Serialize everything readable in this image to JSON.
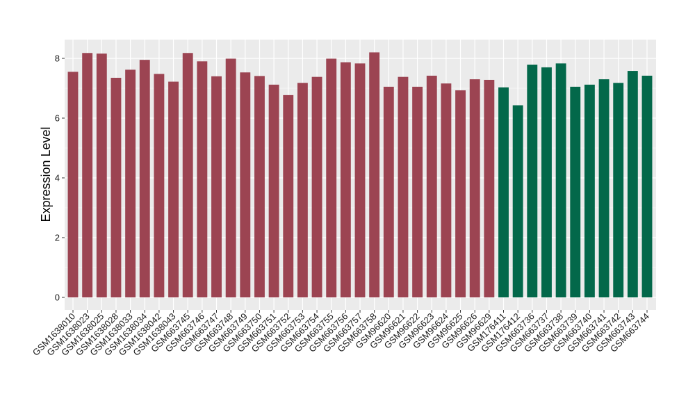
{
  "chart_data": {
    "type": "bar",
    "title": "",
    "xlabel": "",
    "ylabel": "Expression Level",
    "ylim": [
      0,
      8.6
    ],
    "yticks": [
      0,
      2,
      4,
      6,
      8
    ],
    "grid": true,
    "legend": "none",
    "colors": {
      "group_a": "#9c4452",
      "group_b": "#03684a",
      "panel_bg": "#ebebeb",
      "grid": "#ffffff"
    },
    "categories": [
      "GSM1638010",
      "GSM1638023",
      "GSM1638025",
      "GSM1638028",
      "GSM1638033",
      "GSM1638034",
      "GSM1638042",
      "GSM1638043",
      "GSM663745",
      "GSM663746",
      "GSM663747",
      "GSM663748",
      "GSM663749",
      "GSM663750",
      "GSM663751",
      "GSM663752",
      "GSM663753",
      "GSM663754",
      "GSM663755",
      "GSM663756",
      "GSM663757",
      "GSM663758",
      "GSM96620",
      "GSM96621",
      "GSM96622",
      "GSM96623",
      "GSM96624",
      "GSM96625",
      "GSM96626",
      "GSM96629",
      "GSM176411",
      "GSM176412",
      "GSM663736",
      "GSM663737",
      "GSM663738",
      "GSM663739",
      "GSM663740",
      "GSM663741",
      "GSM663742",
      "GSM663743",
      "GSM663744"
    ],
    "values": [
      7.55,
      8.18,
      8.16,
      7.35,
      7.62,
      7.95,
      7.48,
      7.22,
      8.18,
      7.9,
      7.4,
      7.99,
      7.53,
      7.41,
      7.12,
      6.77,
      7.18,
      7.38,
      7.99,
      7.87,
      7.83,
      8.2,
      7.05,
      7.38,
      7.05,
      7.42,
      7.16,
      6.93,
      7.3,
      7.28,
      7.03,
      6.43,
      7.79,
      7.7,
      7.83,
      7.05,
      7.12,
      7.3,
      7.18,
      7.58,
      7.42
    ],
    "groups": [
      "a",
      "a",
      "a",
      "a",
      "a",
      "a",
      "a",
      "a",
      "a",
      "a",
      "a",
      "a",
      "a",
      "a",
      "a",
      "a",
      "a",
      "a",
      "a",
      "a",
      "a",
      "a",
      "a",
      "a",
      "a",
      "a",
      "a",
      "a",
      "a",
      "a",
      "b",
      "b",
      "b",
      "b",
      "b",
      "b",
      "b",
      "b",
      "b",
      "b",
      "b"
    ]
  }
}
